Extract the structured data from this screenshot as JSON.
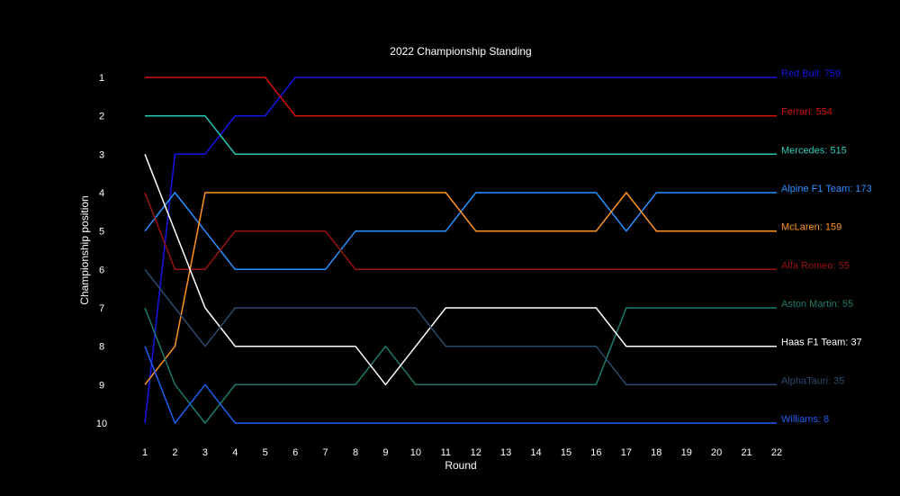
{
  "chart_data": {
    "type": "line",
    "title": "2022 Championship Standing",
    "xlabel": "Round",
    "ylabel": "Championship position",
    "x": [
      1,
      2,
      3,
      4,
      5,
      6,
      7,
      8,
      9,
      10,
      11,
      12,
      13,
      14,
      15,
      16,
      17,
      18,
      19,
      20,
      21,
      22
    ],
    "x_tick_labels": [
      "1",
      "2",
      "3",
      "4",
      "5",
      "6",
      "7",
      "8",
      "9",
      "10",
      "11",
      "12",
      "13",
      "14",
      "15",
      "16",
      "17",
      "18",
      "19",
      "20",
      "21",
      "22"
    ],
    "y_tick_labels": [
      "1",
      "2",
      "3",
      "4",
      "5",
      "6",
      "7",
      "8",
      "9",
      "10"
    ],
    "xlim": [
      1,
      22
    ],
    "ylim": [
      1,
      10
    ],
    "y_inverted": true,
    "grid": false,
    "legend": "end-of-line labels",
    "series": [
      {
        "name": "Red Bull",
        "points": 759,
        "label": "Red Bull: 759",
        "color": "#1515e6",
        "values": [
          10,
          3,
          3,
          2,
          2,
          1,
          1,
          1,
          1,
          1,
          1,
          1,
          1,
          1,
          1,
          1,
          1,
          1,
          1,
          1,
          1,
          1
        ]
      },
      {
        "name": "Ferrari",
        "points": 554,
        "label": "Ferrari: 554",
        "color": "#d41111",
        "values": [
          1,
          1,
          1,
          1,
          1,
          2,
          2,
          2,
          2,
          2,
          2,
          2,
          2,
          2,
          2,
          2,
          2,
          2,
          2,
          2,
          2,
          2
        ]
      },
      {
        "name": "Mercedes",
        "points": 515,
        "label": "Mercedes: 515",
        "color": "#26c9b4",
        "values": [
          2,
          2,
          2,
          3,
          3,
          3,
          3,
          3,
          3,
          3,
          3,
          3,
          3,
          3,
          3,
          3,
          3,
          3,
          3,
          3,
          3,
          3
        ]
      },
      {
        "name": "Alpine F1 Team",
        "points": 173,
        "label": "Alpine F1 Team: 173",
        "color": "#2a8fff",
        "values": [
          5,
          4,
          5,
          6,
          6,
          6,
          6,
          5,
          5,
          5,
          5,
          4,
          4,
          4,
          4,
          4,
          5,
          4,
          4,
          4,
          4,
          4
        ]
      },
      {
        "name": "McLaren",
        "points": 159,
        "label": "McLaren: 159",
        "color": "#ff9324",
        "values": [
          9,
          8,
          4,
          4,
          4,
          4,
          4,
          4,
          4,
          4,
          4,
          5,
          5,
          5,
          5,
          5,
          4,
          5,
          5,
          5,
          5,
          5
        ]
      },
      {
        "name": "Alfa Romeo",
        "points": 55,
        "label": "Alfa Romeo: 55",
        "color": "#9a1313",
        "values": [
          4,
          6,
          6,
          5,
          5,
          5,
          5,
          6,
          6,
          6,
          6,
          6,
          6,
          6,
          6,
          6,
          6,
          6,
          6,
          6,
          6,
          6
        ]
      },
      {
        "name": "Aston Martin",
        "points": 55,
        "label": "Aston Martin: 55",
        "color": "#1f7a6c",
        "values": [
          7,
          9,
          10,
          9,
          9,
          9,
          9,
          9,
          8,
          9,
          9,
          9,
          9,
          9,
          9,
          9,
          7,
          7,
          7,
          7,
          7,
          7
        ]
      },
      {
        "name": "Haas F1 Team",
        "points": 37,
        "label": "Haas F1 Team: 37",
        "color": "#ffffff",
        "values": [
          3,
          5,
          7,
          8,
          8,
          8,
          8,
          8,
          9,
          8,
          7,
          7,
          7,
          7,
          7,
          7,
          8,
          8,
          8,
          8,
          8,
          8
        ]
      },
      {
        "name": "AlphaTauri",
        "points": 35,
        "label": "AlphaTauri: 35",
        "color": "#2b4a6e",
        "values": [
          6,
          7,
          8,
          7,
          7,
          7,
          7,
          7,
          7,
          7,
          8,
          8,
          8,
          8,
          8,
          8,
          9,
          9,
          9,
          9,
          9,
          9
        ]
      },
      {
        "name": "Williams",
        "points": 8,
        "label": "Williams: 8",
        "color": "#1e5ff0",
        "values": [
          8,
          10,
          9,
          10,
          10,
          10,
          10,
          10,
          10,
          10,
          10,
          10,
          10,
          10,
          10,
          10,
          10,
          10,
          10,
          10,
          10,
          10
        ]
      }
    ]
  }
}
